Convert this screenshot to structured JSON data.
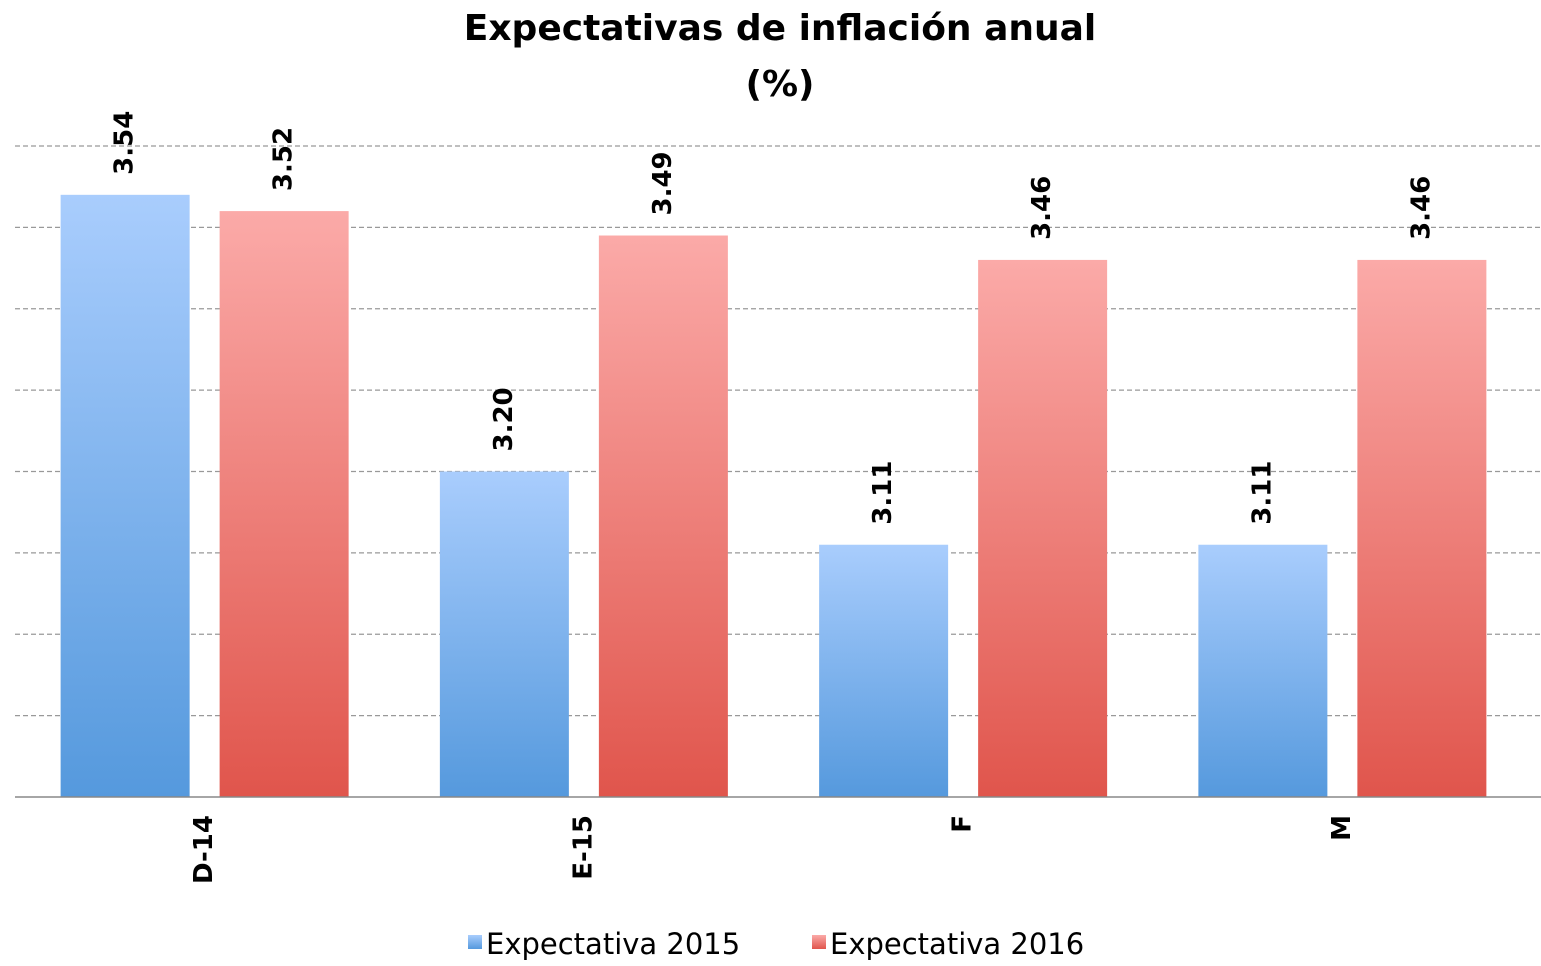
{
  "chart_data": {
    "type": "bar",
    "title": "Expectativas de inflación anual",
    "subtitle": "(%)",
    "categories": [
      "D-14",
      "E-15",
      "F",
      "M"
    ],
    "series": [
      {
        "name": "Expectativa 2015",
        "color": [
          "#a9cdfd",
          "#5599dd"
        ],
        "values": [
          3.54,
          3.2,
          3.11,
          3.11
        ],
        "value_labels": [
          "3.54",
          "3.20",
          "3.11",
          "3.11"
        ]
      },
      {
        "name": "Expectativa 2016",
        "color": [
          "#fbaaa8",
          "#e0554c"
        ],
        "values": [
          3.52,
          3.49,
          3.46,
          3.46
        ],
        "value_labels": [
          "3.52",
          "3.49",
          "3.46",
          "3.46"
        ]
      }
    ],
    "ylim": [
      2.8,
      3.6
    ],
    "yticks": [
      2.8,
      2.9,
      3.0,
      3.1,
      3.2,
      3.3,
      3.4,
      3.5,
      3.6
    ],
    "grid": true,
    "legend": "bottom"
  }
}
